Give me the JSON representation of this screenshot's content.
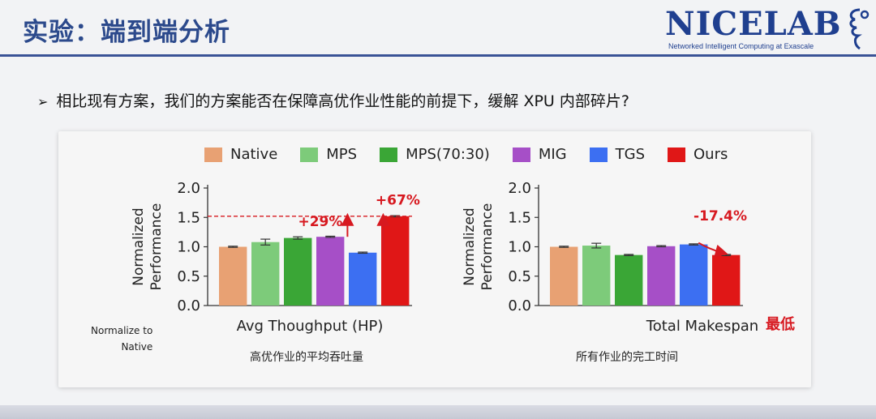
{
  "slide": {
    "title": "实验：端到端分析",
    "question": "相比现有方案，我们的方案能否在保障高优作业性能的前提下，缓解 XPU 内部碎片?"
  },
  "logo": {
    "name": "NICELAB",
    "tagline": "Networked Intelligent Computing at Exascale",
    "color": "#1f3f8f"
  },
  "legend": [
    {
      "name": "Native",
      "color": "#e8a173"
    },
    {
      "name": "MPS",
      "color": "#7dcb7a"
    },
    {
      "name": "MPS(70:30)",
      "color": "#3aa636"
    },
    {
      "name": "MIG",
      "color": "#a64fc7"
    },
    {
      "name": "TGS",
      "color": "#3c6ff2"
    },
    {
      "name": "Ours",
      "color": "#e01717"
    }
  ],
  "note": {
    "text": "Normalize to\nNative"
  },
  "chart_data": [
    {
      "type": "bar",
      "xlabel": "Avg Thoughput (HP)",
      "ylabel": "Normalized\nPerformance",
      "ylim": [
        0,
        2
      ],
      "yticks": [
        "0.0",
        "0.5",
        "1.0",
        "1.5",
        "2.0"
      ],
      "categories": [
        "Native",
        "MPS",
        "MPS(70:30)",
        "MIG",
        "TGS",
        "Ours"
      ],
      "values": [
        1.0,
        1.08,
        1.15,
        1.17,
        0.9,
        1.52
      ],
      "errors": [
        0.01,
        0.05,
        0.02,
        0.01,
        0.01,
        0.01
      ],
      "reference_line": 1.52,
      "annotations": [
        {
          "text": "+29%",
          "from_category": "MIG",
          "from": 1.17,
          "to": 1.52
        },
        {
          "text": "+67%",
          "from_category": "TGS",
          "from": 0.9,
          "to": 1.52
        }
      ],
      "caption": "高优作业的平均吞吐量"
    },
    {
      "type": "bar",
      "xlabel": "Total Makespan",
      "xlabel_highlight": "最低",
      "ylabel": "Normalized\nPerformance",
      "ylim": [
        0,
        2
      ],
      "yticks": [
        "0.0",
        "0.5",
        "1.0",
        "1.5",
        "2.0"
      ],
      "categories": [
        "Native",
        "MPS",
        "MPS(70:30)",
        "MIG",
        "TGS",
        "Ours"
      ],
      "values": [
        1.0,
        1.02,
        0.86,
        1.01,
        1.04,
        0.86
      ],
      "errors": [
        0.01,
        0.04,
        0.01,
        0.01,
        0.01,
        0.01
      ],
      "annotations": [
        {
          "text": "-17.4%",
          "from_category": "TGS",
          "from": 1.04,
          "to": 0.86
        }
      ],
      "caption": "所有作业的完工时间"
    }
  ],
  "colors": {
    "accent_red": "#d71920",
    "title_blue": "#2c4a8c"
  }
}
